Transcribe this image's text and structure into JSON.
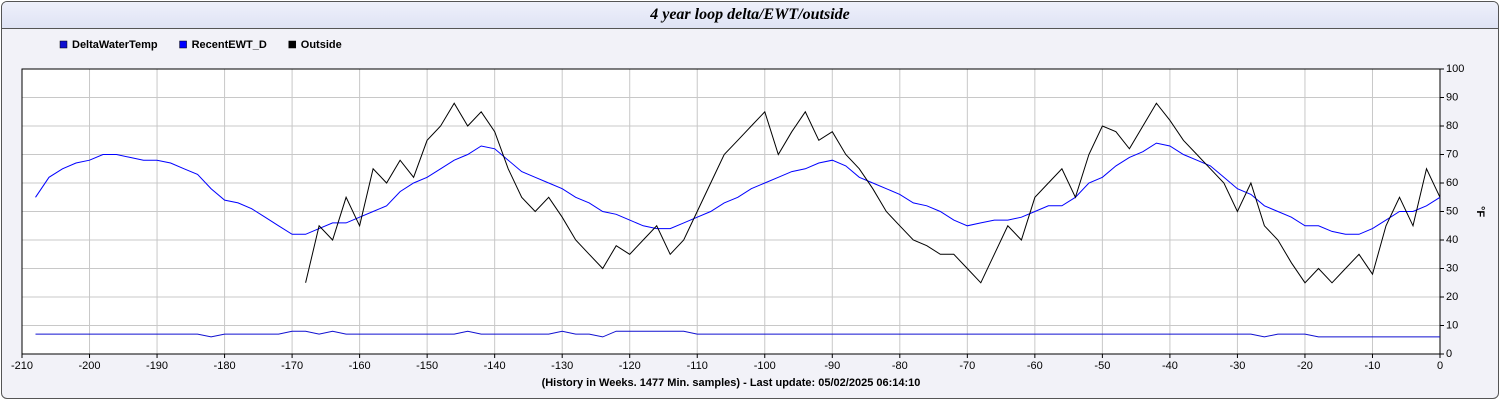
{
  "chart_data": {
    "type": "line",
    "title": "4 year loop delta/EWT/outside",
    "x_label": "(History in Weeks. 1477 Min. samples) - Last update: 05/02/2025 06:14:10",
    "y_label": "°F",
    "x": [
      -208,
      -206,
      -204,
      -202,
      -200,
      -198,
      -196,
      -194,
      -192,
      -190,
      -188,
      -186,
      -184,
      -182,
      -180,
      -178,
      -176,
      -174,
      -172,
      -170,
      -168,
      -166,
      -164,
      -162,
      -160,
      -158,
      -156,
      -154,
      -152,
      -150,
      -148,
      -146,
      -144,
      -142,
      -140,
      -138,
      -136,
      -134,
      -132,
      -130,
      -128,
      -126,
      -124,
      -122,
      -120,
      -118,
      -116,
      -114,
      -112,
      -110,
      -108,
      -106,
      -104,
      -102,
      -100,
      -98,
      -96,
      -94,
      -92,
      -90,
      -88,
      -86,
      -84,
      -82,
      -80,
      -78,
      -76,
      -74,
      -72,
      -70,
      -68,
      -66,
      -64,
      -62,
      -60,
      -58,
      -56,
      -54,
      -52,
      -50,
      -48,
      -46,
      -44,
      -42,
      -40,
      -38,
      -36,
      -34,
      -32,
      -30,
      -28,
      -26,
      -24,
      -22,
      -20,
      -18,
      -16,
      -14,
      -12,
      -10,
      -8,
      -6,
      -4,
      -2,
      0
    ],
    "series": [
      {
        "name": "DeltaWaterTemp",
        "color": "#1010d0",
        "values": [
          7,
          7,
          7,
          7,
          7,
          7,
          7,
          7,
          7,
          7,
          7,
          7,
          7,
          6,
          7,
          7,
          7,
          7,
          7,
          8,
          8,
          7,
          8,
          7,
          7,
          7,
          7,
          7,
          7,
          7,
          7,
          7,
          8,
          7,
          7,
          7,
          7,
          7,
          7,
          8,
          7,
          7,
          6,
          8,
          8,
          8,
          8,
          8,
          8,
          7,
          7,
          7,
          7,
          7,
          7,
          7,
          7,
          7,
          7,
          7,
          7,
          7,
          7,
          7,
          7,
          7,
          7,
          7,
          7,
          7,
          7,
          7,
          7,
          7,
          7,
          7,
          7,
          7,
          7,
          7,
          7,
          7,
          7,
          7,
          7,
          7,
          7,
          7,
          7,
          7,
          7,
          6,
          7,
          7,
          7,
          6,
          6,
          6,
          6,
          6,
          6,
          6,
          6,
          6,
          6
        ]
      },
      {
        "name": "RecentEWT_D",
        "color": "#0000ff",
        "values": [
          55,
          62,
          65,
          67,
          68,
          70,
          70,
          69,
          68,
          68,
          67,
          65,
          63,
          58,
          54,
          53,
          51,
          48,
          45,
          42,
          42,
          44,
          46,
          46,
          48,
          50,
          52,
          57,
          60,
          62,
          65,
          68,
          70,
          73,
          72,
          68,
          64,
          62,
          60,
          58,
          55,
          53,
          50,
          49,
          47,
          45,
          44,
          44,
          46,
          48,
          50,
          53,
          55,
          58,
          60,
          62,
          64,
          65,
          67,
          68,
          66,
          62,
          60,
          58,
          56,
          53,
          52,
          50,
          47,
          45,
          46,
          47,
          47,
          48,
          50,
          52,
          52,
          55,
          60,
          62,
          66,
          69,
          71,
          74,
          73,
          70,
          68,
          66,
          62,
          58,
          56,
          52,
          50,
          48,
          45,
          45,
          43,
          42,
          42,
          44,
          47,
          50,
          50,
          52,
          55
        ]
      },
      {
        "name": "Outside",
        "color": "#000000",
        "values": [
          null,
          null,
          null,
          null,
          null,
          null,
          null,
          null,
          null,
          null,
          null,
          null,
          null,
          null,
          null,
          null,
          null,
          null,
          null,
          null,
          25,
          45,
          40,
          55,
          45,
          65,
          60,
          68,
          62,
          75,
          80,
          88,
          80,
          85,
          78,
          65,
          55,
          50,
          55,
          48,
          40,
          35,
          30,
          38,
          35,
          40,
          45,
          35,
          40,
          50,
          60,
          70,
          75,
          80,
          85,
          70,
          78,
          85,
          75,
          78,
          70,
          65,
          58,
          50,
          45,
          40,
          38,
          35,
          35,
          30,
          25,
          35,
          45,
          40,
          55,
          60,
          65,
          55,
          70,
          80,
          78,
          72,
          80,
          88,
          82,
          75,
          70,
          65,
          60,
          50,
          60,
          45,
          40,
          32,
          25,
          30,
          25,
          30,
          35,
          28,
          45,
          55,
          45,
          65,
          55
        ]
      }
    ],
    "xlim": [
      -210,
      0
    ],
    "xticks": [
      -210,
      -200,
      -190,
      -180,
      -170,
      -160,
      -150,
      -140,
      -130,
      -120,
      -110,
      -100,
      -90,
      -80,
      -70,
      -60,
      -50,
      -40,
      -30,
      -20,
      -10,
      0
    ],
    "ylim": [
      0,
      100
    ],
    "yticks": [
      0,
      10,
      20,
      30,
      40,
      50,
      60,
      70,
      80,
      90,
      100
    ],
    "grid": true,
    "legend": "top-left"
  }
}
